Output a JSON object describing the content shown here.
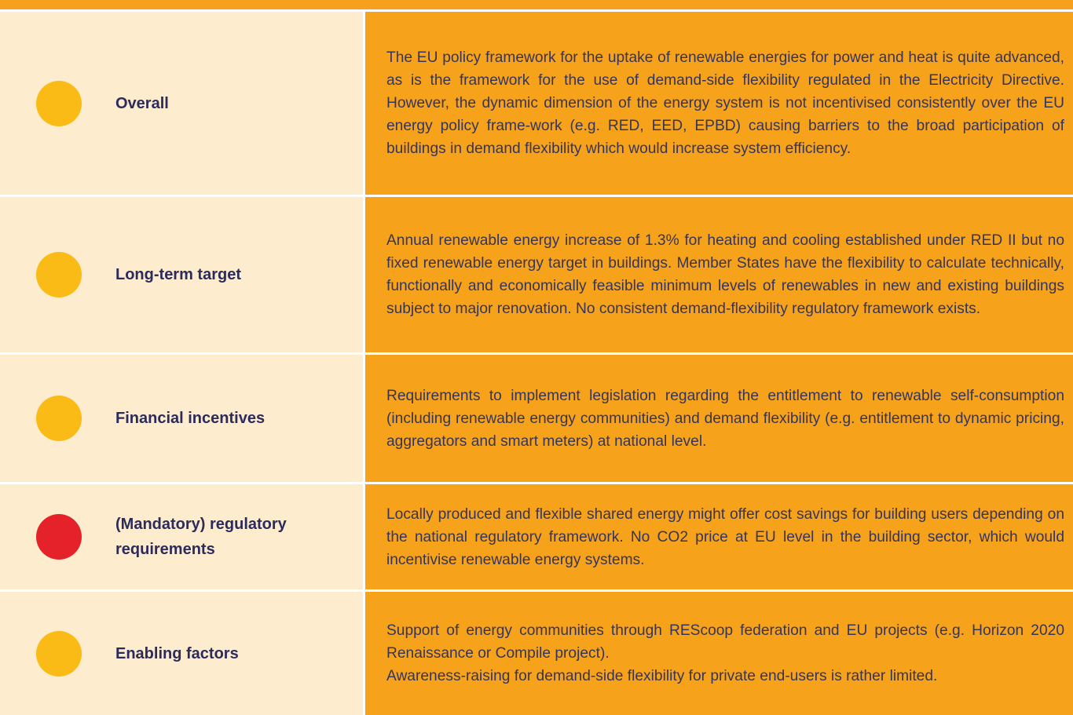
{
  "table": {
    "rows": [
      {
        "label": "Overall",
        "color": "#fbbb16",
        "text": [
          "The EU policy framework for the uptake of renewable energies for power and heat is quite advanced, as is the framework for the use of demand-side flexibility regulated in the Electricity  Directive. However, the dynamic dimension of the energy system is not incentivised consistently over the EU energy policy frame-work (e.g. RED, EED, EPBD) causing barriers to the broad participation of buildings in demand flexibility which would increase system efficiency."
        ]
      },
      {
        "label": "Long-term  target",
        "color": "#fbbb16",
        "text": [
          "Annual renewable energy increase of 1.3% for heating and cooling established under RED II but no fixed renewable energy target in buildings. Member States have  the flexibility to calculate technically, functionally and economically feasible minimum levels of renewables in new and existing buildings subject to major renovation. No consistent demand-flexibility regulatory framework exists."
        ]
      },
      {
        "label": "Financial incentives",
        "color": "#fbbb16",
        "text": [
          "Requirements to  implement legislation regarding the entitlement to renewable self-consumption (including  renewable  energy  communities) and demand flexibility (e.g. entitlement to dynamic pricing,  aggregators and smart meters)  at national level."
        ]
      },
      {
        "label": "(Mandatory) regulatory requirements",
        "color": "#e52229",
        "text": [
          "Locally produced and  flexible shared energy might offer  cost savings for building users  depending on the national regulatory framework. No CO2 price  at EU level in the building sector, which would incentivise renewable energy systems."
        ]
      },
      {
        "label": "Enabling factors",
        "color": "#fbbb16",
        "text": [
          "Support of energy communities through REScoop federation and EU projects (e.g. Horizon 2020 Renaissance or Compile project).",
          "Awareness-raising for demand-side flexibility for private end-users is rather limited."
        ]
      }
    ]
  }
}
